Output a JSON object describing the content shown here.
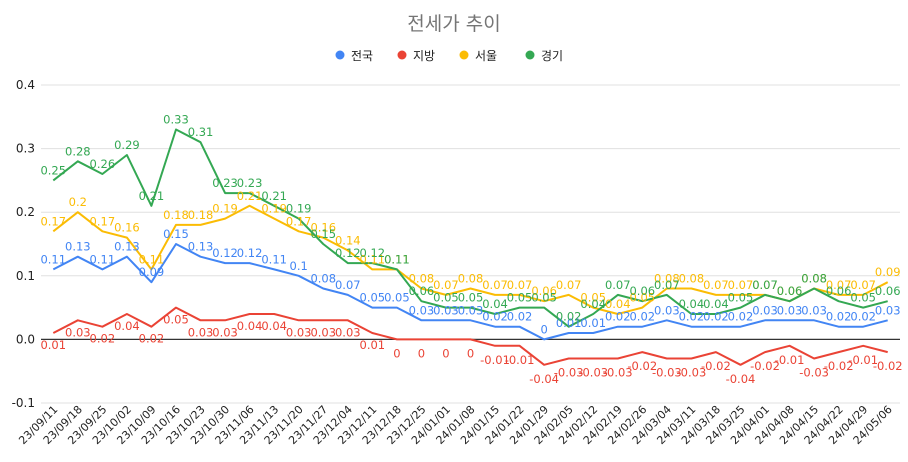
{
  "chart_data": {
    "type": "line",
    "title": "전세가 추이",
    "xlabel": "",
    "ylabel": "",
    "ylim": [
      -0.1,
      0.4
    ],
    "yticks": [
      "-0.1",
      "0.0",
      "0.1",
      "0.2",
      "0.3",
      "0.4"
    ],
    "yticks_values": [
      -0.1,
      0,
      0.1,
      0.2,
      0.3,
      0.4
    ],
    "grid": true,
    "legend_position": "top",
    "categories": [
      "23/09/11",
      "23/09/18",
      "23/09/25",
      "23/10/02",
      "23/10/09",
      "23/10/16",
      "23/10/23",
      "23/10/30",
      "23/11/06",
      "23/11/13",
      "23/11/20",
      "23/11/27",
      "23/12/04",
      "23/12/11",
      "23/12/18",
      "23/12/25",
      "24/01/01",
      "24/01/08",
      "24/01/15",
      "24/01/22",
      "24/01/29",
      "24/02/05",
      "24/02/12",
      "24/02/19",
      "24/02/26",
      "24/03/04",
      "24/03/11",
      "24/03/18",
      "24/03/25",
      "24/04/01",
      "24/04/08",
      "24/04/15",
      "24/04/22",
      "24/04/29",
      "24/05/06"
    ],
    "series": [
      {
        "name": "전국",
        "color": "#4285F4",
        "values": [
          0.11,
          0.13,
          0.11,
          0.13,
          0.09,
          0.15,
          0.13,
          0.12,
          0.12,
          0.11,
          0.1,
          0.08,
          0.07,
          0.05,
          0.05,
          0.03,
          0.03,
          0.03,
          0.02,
          0.02,
          0,
          0.01,
          0.01,
          0.02,
          0.02,
          0.03,
          0.02,
          0.02,
          0.02,
          0.03,
          0.03,
          0.03,
          0.02,
          0.02,
          0.03
        ],
        "labels": [
          "0.11",
          "0.13",
          "0.11",
          "0.13",
          "0.09",
          "0.15",
          "0.13",
          "0.12",
          "0.12",
          "0.11",
          "0.1",
          "0.08",
          "0.07",
          "0.05",
          "0.05",
          "0.03",
          "0.03",
          "0.03",
          "0.02",
          "0.02",
          "0",
          "0.01",
          "0.01",
          "0.02",
          "0.02",
          "0.03",
          "0.02",
          "0.02",
          "0.02",
          "0.03",
          "0.03",
          "0.03",
          "0.02",
          "0.02",
          "0.03"
        ]
      },
      {
        "name": "지방",
        "color": "#EA4335",
        "values": [
          0.01,
          0.03,
          0.02,
          0.04,
          0.02,
          0.05,
          0.03,
          0.03,
          0.04,
          0.04,
          0.03,
          0.03,
          0.03,
          0.01,
          0,
          0,
          0,
          0,
          -0.01,
          -0.01,
          -0.04,
          -0.03,
          -0.03,
          -0.03,
          -0.02,
          -0.03,
          -0.03,
          -0.02,
          -0.04,
          -0.02,
          -0.01,
          -0.03,
          -0.02,
          -0.01,
          -0.02
        ],
        "labels": [
          "0.01",
          "0.03",
          "0.02",
          "0.04",
          "0.02",
          "0.05",
          "0.03",
          "0.03",
          "0.04",
          "0.04",
          "0.03",
          "0.03",
          "0.03",
          "0.01",
          "0",
          "0",
          "0",
          "0",
          "-0.01",
          "-0.01",
          "-0.04",
          "-0.03",
          "-0.03",
          "-0.03",
          "-0.02",
          "-0.03",
          "-0.03",
          "-0.02",
          "-0.04",
          "-0.02",
          "-0.01",
          "-0.03",
          "-0.02",
          "-0.01",
          "-0.02"
        ]
      },
      {
        "name": "서울",
        "color": "#FBBC04",
        "values": [
          0.17,
          0.2,
          0.17,
          0.16,
          0.11,
          0.18,
          0.18,
          0.19,
          0.21,
          0.19,
          0.17,
          0.16,
          0.14,
          0.11,
          0.11,
          0.08,
          0.07,
          0.08,
          0.07,
          0.07,
          0.06,
          0.07,
          0.05,
          0.04,
          0.05,
          0.08,
          0.08,
          0.07,
          0.07,
          0.07,
          0.06,
          0.08,
          0.07,
          0.07,
          0.09
        ],
        "labels": [
          "0.17",
          "0.2",
          "0.17",
          "0.16",
          "0.11",
          "0.18",
          "0.18",
          "0.19",
          "0.21",
          "0.19",
          "0.17",
          "0.16",
          "0.14",
          "0.11",
          "0.11",
          "0.08",
          "0.07",
          "0.08",
          "0.07",
          "0.07",
          "0.06",
          "0.07",
          "0.05",
          "0.04",
          "0.05",
          "0.08",
          "0.08",
          "0.07",
          "0.07",
          "0.07",
          "0.06",
          "0.08",
          "0.07",
          "0.07",
          "0.09"
        ]
      },
      {
        "name": "경기",
        "color": "#34A853",
        "values": [
          0.25,
          0.28,
          0.26,
          0.29,
          0.21,
          0.33,
          0.31,
          0.23,
          0.23,
          0.21,
          0.19,
          0.15,
          0.12,
          0.12,
          0.11,
          0.06,
          0.05,
          0.05,
          0.04,
          0.05,
          0.05,
          0.02,
          0.04,
          0.07,
          0.06,
          0.07,
          0.04,
          0.04,
          0.05,
          0.07,
          0.06,
          0.08,
          0.06,
          0.05,
          0.06
        ],
        "labels": [
          "0.25",
          "0.28",
          "0.26",
          "0.29",
          "0.21",
          "0.33",
          "0.31",
          "0.23",
          "0.23",
          "0.21",
          "0.19",
          "0.15",
          "0.12",
          "0.12",
          "0.11",
          "0.06",
          "0.05",
          "0.05",
          "0.04",
          "0.05",
          "0.05",
          "0.02",
          "0.04",
          "0.07",
          "0.06",
          "0.07",
          "0.04",
          "0.04",
          "0.05",
          "0.07",
          "0.06",
          "0.08",
          "0.06",
          "0.05",
          "0.06"
        ]
      }
    ]
  }
}
